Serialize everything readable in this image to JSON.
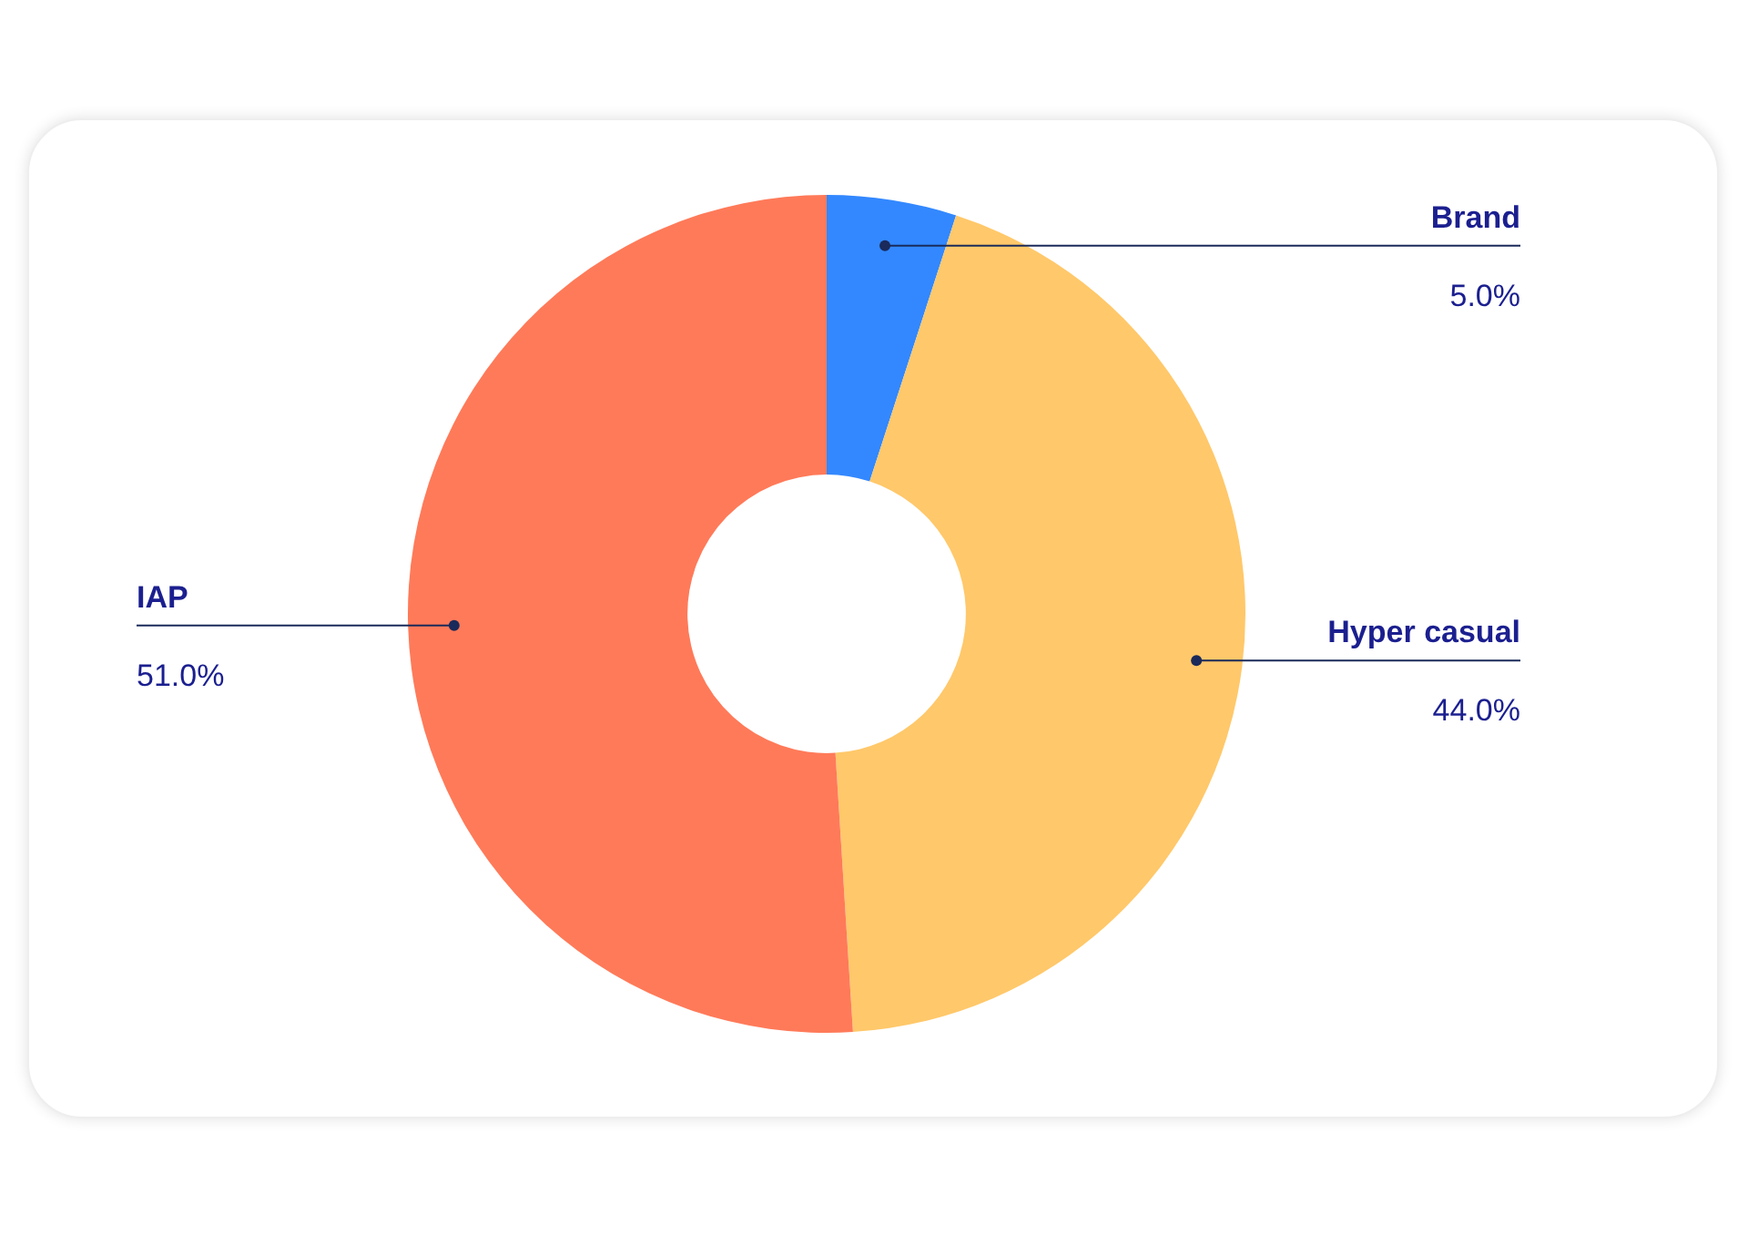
{
  "chart_data": {
    "type": "donut",
    "categories": [
      "Brand",
      "Hyper casual",
      "IAP"
    ],
    "values": [
      5,
      44,
      51
    ],
    "colors": [
      "#3388ff",
      "#ffc86a",
      "#ff7a59"
    ],
    "value_labels": [
      "5.0%",
      "44.0%",
      "51.0%"
    ],
    "legend": false
  }
}
